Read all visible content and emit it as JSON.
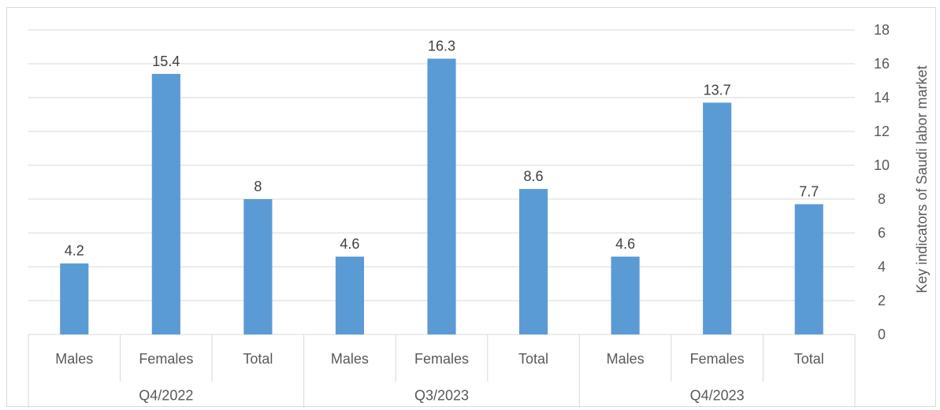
{
  "chart_data": {
    "type": "bar",
    "groups": [
      {
        "label": "Q4/2022",
        "categories": [
          "Males",
          "Females",
          "Total"
        ],
        "values": [
          4.2,
          15.4,
          8
        ]
      },
      {
        "label": "Q3/2023",
        "categories": [
          "Males",
          "Females",
          "Total"
        ],
        "values": [
          4.6,
          16.3,
          8.6
        ]
      },
      {
        "label": "Q4/2023",
        "categories": [
          "Males",
          "Females",
          "Total"
        ],
        "values": [
          4.6,
          13.7,
          7.7
        ]
      }
    ],
    "data_labels": [
      "4.2",
      "15.4",
      "8",
      "4.6",
      "16.3",
      "8.6",
      "4.6",
      "13.7",
      "7.7"
    ],
    "ylabel": "Key indicators of  Saudi labor market",
    "ylim": [
      0,
      18
    ],
    "yticks": [
      "0",
      "2",
      "4",
      "6",
      "8",
      "10",
      "12",
      "14",
      "16",
      "18"
    ],
    "y_axis_position": "right",
    "grid": true,
    "legend": "none",
    "bar_color": "#5b9bd5",
    "grid_color": "#d9d9d9"
  }
}
